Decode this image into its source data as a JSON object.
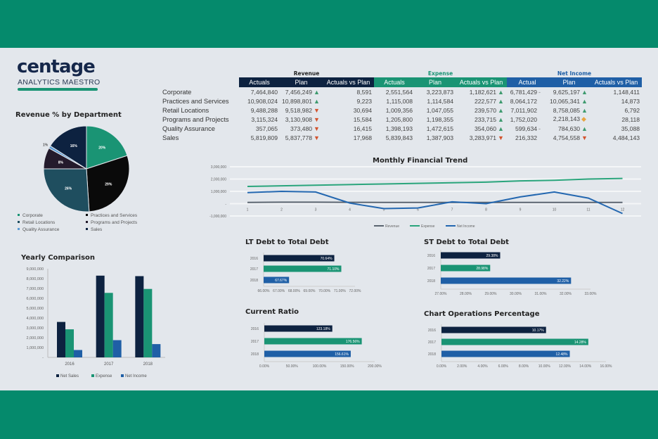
{
  "brand": {
    "name": "centage",
    "tagline": "ANALYTICS MAESTRO"
  },
  "colors": {
    "band": "#058a6c",
    "navy": "#0d2240",
    "green": "#1a9474",
    "blue": "#1f5fa6",
    "up": "#3d9a6e",
    "down": "#d3532d",
    "neutral": "#e8a540"
  },
  "table": {
    "groups": [
      "Revenue",
      "Expense",
      "Net Income"
    ],
    "columns": [
      "Actuals",
      "Plan",
      "Actuals vs Plan",
      "Actuals",
      "Plan",
      "Actuals vs Plan",
      "Actual",
      "Plan",
      "Actuals vs Plan"
    ],
    "rows": [
      {
        "label": "Corporate",
        "cells": [
          "7,464,840",
          "7,456,249",
          "8,591",
          "2,551,564",
          "3,223,873",
          "1,182,621",
          "6,781,429",
          "9,625,197",
          "1,148,411"
        ],
        "indicators": [
          "up",
          "up",
          "dash",
          "up"
        ]
      },
      {
        "label": "Practices and Services",
        "cells": [
          "10,908,024",
          "10,898,801",
          "9,223",
          "1,115,008",
          "1,114,584",
          "222,577",
          "8,064,172",
          "10,065,341",
          "14,873"
        ],
        "indicators": [
          "up",
          "up",
          "",
          "up"
        ]
      },
      {
        "label": "Retail Locations",
        "cells": [
          "9,488,288",
          "9,518,982",
          "30,694",
          "1,009,356",
          "1,047,055",
          "239,570",
          "7,011,902",
          "8,758,085",
          "6,792"
        ],
        "indicators": [
          "down",
          "up",
          "",
          "up"
        ]
      },
      {
        "label": "Programs and Projects",
        "cells": [
          "3,115,324",
          "3,130,908",
          "15,584",
          "1,205,800",
          "1,198,355",
          "233,715",
          "1,752,020",
          "2,218,143",
          "28,118"
        ],
        "indicators": [
          "down",
          "up",
          "",
          "neutral"
        ]
      },
      {
        "label": "Quality Assurance",
        "cells": [
          "357,065",
          "373,480",
          "16,415",
          "1,398,193",
          "1,472,615",
          "354,060",
          "599,634",
          "784,630",
          "35,088"
        ],
        "indicators": [
          "down",
          "up",
          "dash",
          "up"
        ]
      },
      {
        "label": "Sales",
        "cells": [
          "5,819,809",
          "5,837,778",
          "17,968",
          "5,839,843",
          "1,387,903",
          "3,283,971",
          "216,332",
          "4,754,558",
          "4,484,143"
        ],
        "indicators": [
          "down",
          "down",
          "",
          "down"
        ]
      }
    ]
  },
  "chart_data": [
    {
      "type": "pie",
      "title": "Revenue % by Department",
      "categories": [
        "Corporate",
        "Practices and Services",
        "Retail Locations",
        "Programs and Projects",
        "Quality Assurance",
        "Sales"
      ],
      "values": [
        20,
        29,
        26,
        8,
        1,
        16
      ],
      "labels": [
        "20%",
        "29%",
        "26%",
        "8%",
        "1%",
        "16%"
      ],
      "colors": [
        "#1a9474",
        "#0a0a0a",
        "#1f4e5f",
        "#241b2c",
        "#5b9bd5",
        "#0d2240"
      ],
      "legend": "bottom"
    },
    {
      "type": "line",
      "title": "Monthly Financial Trend",
      "x": [
        1,
        2,
        3,
        4,
        5,
        6,
        7,
        8,
        9,
        10,
        11,
        12
      ],
      "ylim": [
        -1000000,
        3000000
      ],
      "yticks": [
        "3,000,000",
        "2,000,000",
        "1,000,000",
        "-",
        "-1,000,000"
      ],
      "series": [
        {
          "name": "Revenue",
          "color": "#5a6470",
          "values": [
            100000,
            120000,
            120000,
            110000,
            100000,
            100000,
            100000,
            100000,
            100000,
            100000,
            100000,
            100000
          ]
        },
        {
          "name": "Expense",
          "color": "#2aa57c",
          "values": [
            1400000,
            1450000,
            1500000,
            1550000,
            1600000,
            1650000,
            1700000,
            1750000,
            1850000,
            1900000,
            2000000,
            2050000
          ]
        },
        {
          "name": "Net Income",
          "color": "#2367b0",
          "values": [
            900000,
            1000000,
            950000,
            50000,
            -400000,
            -350000,
            150000,
            0,
            550000,
            950000,
            450000,
            -800000
          ]
        }
      ],
      "grid": true,
      "legend": "bottom"
    },
    {
      "type": "bar",
      "title": "Yearly Comparison",
      "categories": [
        "2016",
        "2017",
        "2018"
      ],
      "ylim": [
        0,
        9000000
      ],
      "yticks": [
        "9,000,000",
        "8,000,000",
        "7,000,000",
        "6,000,000",
        "5,000,000",
        "4,000,000",
        "3,000,000",
        "2,000,000",
        "1,000,000",
        "-"
      ],
      "series": [
        {
          "name": "Net Sales",
          "color": "#0d2240",
          "values": [
            3600000,
            8300000,
            8250000
          ]
        },
        {
          "name": "Expense",
          "color": "#1a9474",
          "values": [
            2850000,
            6550000,
            6950000
          ]
        },
        {
          "name": "Net Income",
          "color": "#1f5fa6",
          "values": [
            750000,
            1750000,
            1350000
          ]
        }
      ],
      "legend": "bottom"
    },
    {
      "type": "bar",
      "orientation": "horizontal",
      "title": "LT Debt to Total Debt",
      "categories": [
        "2016",
        "2017",
        "2018"
      ],
      "values": [
        70.64,
        71.1,
        67.67
      ],
      "labels": [
        "70.64%",
        "71.10%",
        "67.67%"
      ],
      "xlim": [
        66,
        72
      ],
      "xticks": [
        "66.00%",
        "67.00%",
        "68.00%",
        "69.00%",
        "70.00%",
        "71.00%",
        "72.00%"
      ]
    },
    {
      "type": "bar",
      "orientation": "horizontal",
      "title": "ST Debt to Total Debt",
      "categories": [
        "2016",
        "2017",
        "2018"
      ],
      "values": [
        29.38,
        28.98,
        32.22
      ],
      "labels": [
        "29.38%",
        "28.98%",
        "32.22%"
      ],
      "xlim": [
        27,
        33
      ],
      "xticks": [
        "27.00%",
        "28.00%",
        "29.00%",
        "30.00%",
        "31.00%",
        "32.00%",
        "33.00%"
      ]
    },
    {
      "type": "bar",
      "orientation": "horizontal",
      "title": "Current Ratio",
      "categories": [
        "2016",
        "2017",
        "2018"
      ],
      "values": [
        123.18,
        176.56,
        156.61
      ],
      "labels": [
        "123.18%",
        "176.56%",
        "156.61%"
      ],
      "xlim": [
        0,
        200
      ],
      "xticks": [
        "0.00%",
        "50.00%",
        "100.00%",
        "150.00%",
        "200.00%"
      ]
    },
    {
      "type": "bar",
      "orientation": "horizontal",
      "title": "Chart Operations Percentage",
      "categories": [
        "2016",
        "2017",
        "2018"
      ],
      "values": [
        10.17,
        14.28,
        12.48
      ],
      "labels": [
        "10.17%",
        "14.28%",
        "12.48%"
      ],
      "xlim": [
        0,
        16
      ],
      "xticks": [
        "0.00%",
        "2.00%",
        "4.00%",
        "6.00%",
        "8.00%",
        "10.00%",
        "12.00%",
        "14.00%",
        "16.00%"
      ]
    }
  ]
}
